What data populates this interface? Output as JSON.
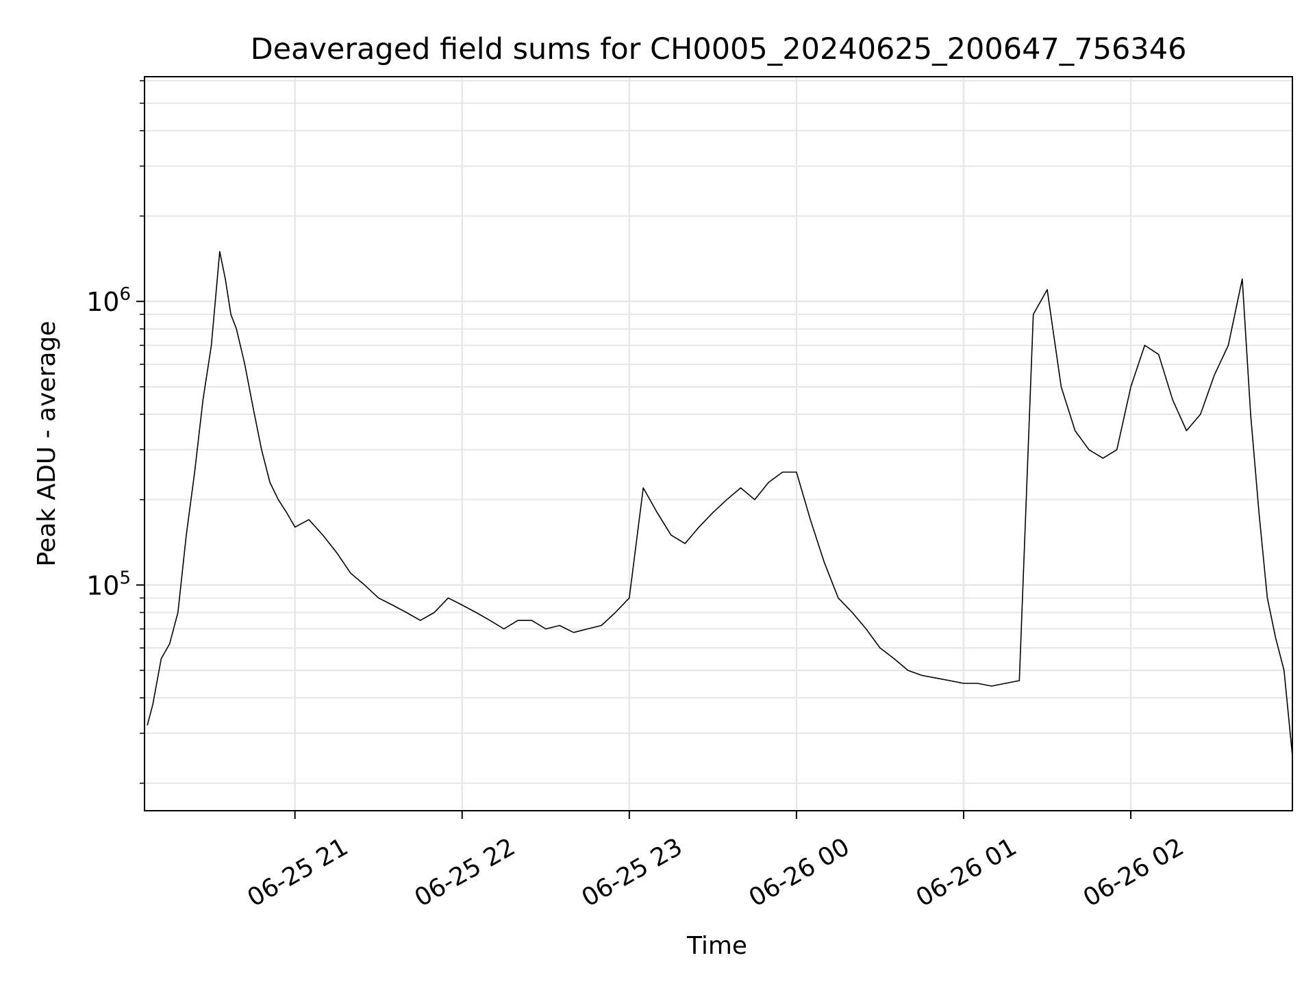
{
  "chart_data": {
    "type": "line",
    "title": "Deaveraged field sums for CH0005_20240625_200647_756346",
    "xlabel": "Time",
    "ylabel": "Peak ADU - average",
    "yscale": "log",
    "ylim": [
      16000,
      6200000
    ],
    "xlim": [
      "2024-06-25 20:06",
      "2024-06-26 02:58"
    ],
    "grid": true,
    "legend": "none",
    "line_color": "#000000",
    "x_ticks": [
      {
        "time": "2024-06-25 21:00",
        "label": "06-25 21"
      },
      {
        "time": "2024-06-25 22:00",
        "label": "06-25 22"
      },
      {
        "time": "2024-06-25 23:00",
        "label": "06-25 23"
      },
      {
        "time": "2024-06-26 00:00",
        "label": "06-26 00"
      },
      {
        "time": "2024-06-26 01:00",
        "label": "06-26 01"
      },
      {
        "time": "2024-06-26 02:00",
        "label": "06-26 02"
      }
    ],
    "y_ticks": [
      {
        "value": 100000,
        "base": "10",
        "exp": "5"
      },
      {
        "value": 1000000,
        "base": "10",
        "exp": "6"
      }
    ],
    "series": [
      {
        "x": [
          "2024-06-25 20:07",
          "2024-06-25 20:09",
          "2024-06-25 20:12",
          "2024-06-25 20:15",
          "2024-06-25 20:18",
          "2024-06-25 20:21",
          "2024-06-25 20:24",
          "2024-06-25 20:27",
          "2024-06-25 20:30",
          "2024-06-25 20:33",
          "2024-06-25 20:35",
          "2024-06-25 20:37",
          "2024-06-25 20:39",
          "2024-06-25 20:42",
          "2024-06-25 20:45",
          "2024-06-25 20:48",
          "2024-06-25 20:51",
          "2024-06-25 20:54",
          "2024-06-25 20:57",
          "2024-06-25 21:00",
          "2024-06-25 21:05",
          "2024-06-25 21:10",
          "2024-06-25 21:15",
          "2024-06-25 21:20",
          "2024-06-25 21:25",
          "2024-06-25 21:30",
          "2024-06-25 21:35",
          "2024-06-25 21:40",
          "2024-06-25 21:45",
          "2024-06-25 21:50",
          "2024-06-25 21:55",
          "2024-06-25 22:00",
          "2024-06-25 22:05",
          "2024-06-25 22:10",
          "2024-06-25 22:15",
          "2024-06-25 22:20",
          "2024-06-25 22:25",
          "2024-06-25 22:30",
          "2024-06-25 22:35",
          "2024-06-25 22:40",
          "2024-06-25 22:45",
          "2024-06-25 22:50",
          "2024-06-25 22:55",
          "2024-06-25 23:00",
          "2024-06-25 23:05",
          "2024-06-25 23:10",
          "2024-06-25 23:15",
          "2024-06-25 23:20",
          "2024-06-25 23:25",
          "2024-06-25 23:30",
          "2024-06-25 23:35",
          "2024-06-25 23:40",
          "2024-06-25 23:45",
          "2024-06-25 23:50",
          "2024-06-25 23:55",
          "2024-06-26 00:00",
          "2024-06-26 00:05",
          "2024-06-26 00:10",
          "2024-06-26 00:15",
          "2024-06-26 00:20",
          "2024-06-26 00:25",
          "2024-06-26 00:30",
          "2024-06-26 00:35",
          "2024-06-26 00:40",
          "2024-06-26 00:45",
          "2024-06-26 00:50",
          "2024-06-26 00:55",
          "2024-06-26 01:00",
          "2024-06-26 01:05",
          "2024-06-26 01:10",
          "2024-06-26 01:15",
          "2024-06-26 01:20",
          "2024-06-26 01:25",
          "2024-06-26 01:30",
          "2024-06-26 01:35",
          "2024-06-26 01:40",
          "2024-06-26 01:45",
          "2024-06-26 01:50",
          "2024-06-26 01:55",
          "2024-06-26 02:00",
          "2024-06-26 02:05",
          "2024-06-26 02:10",
          "2024-06-26 02:15",
          "2024-06-26 02:20",
          "2024-06-26 02:25",
          "2024-06-26 02:30",
          "2024-06-26 02:35",
          "2024-06-26 02:40",
          "2024-06-26 02:43",
          "2024-06-26 02:46",
          "2024-06-26 02:49",
          "2024-06-26 02:52",
          "2024-06-26 02:55",
          "2024-06-26 02:58"
        ],
        "y": [
          32000,
          38000,
          55000,
          62000,
          80000,
          150000,
          250000,
          450000,
          700000,
          1500000,
          1200000,
          900000,
          800000,
          600000,
          420000,
          300000,
          230000,
          200000,
          180000,
          160000,
          170000,
          150000,
          130000,
          110000,
          100000,
          90000,
          85000,
          80000,
          75000,
          80000,
          90000,
          85000,
          80000,
          75000,
          70000,
          75000,
          75000,
          70000,
          72000,
          68000,
          70000,
          72000,
          80000,
          90000,
          220000,
          180000,
          150000,
          140000,
          160000,
          180000,
          200000,
          220000,
          200000,
          230000,
          250000,
          250000,
          170000,
          120000,
          90000,
          80000,
          70000,
          60000,
          55000,
          50000,
          48000,
          47000,
          46000,
          45000,
          45000,
          44000,
          45000,
          46000,
          900000,
          1100000,
          500000,
          350000,
          300000,
          280000,
          300000,
          500000,
          700000,
          650000,
          450000,
          350000,
          400000,
          550000,
          700000,
          1200000,
          400000,
          180000,
          90000,
          65000,
          50000,
          25000
        ]
      }
    ]
  }
}
